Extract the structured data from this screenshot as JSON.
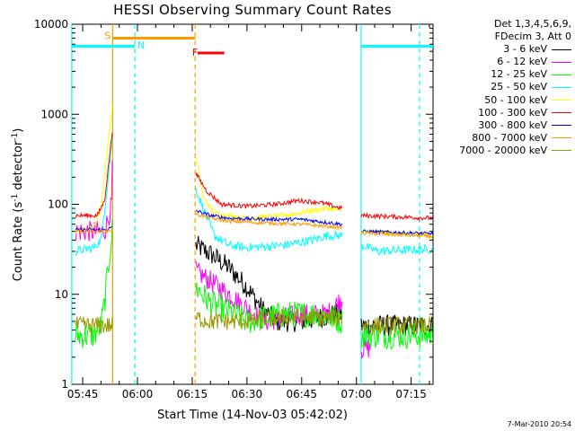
{
  "chart_data": {
    "type": "line",
    "title": "HESSI Observing Summary Count Rates",
    "xlabel": "Start Time (14-Nov-03 05:42:02)",
    "ylabel_main": "Count Rate (s",
    "ylabel_sup1": "-1",
    "ylabel_mid": " detector",
    "ylabel_sup2": "-1",
    "ylabel_end": ")",
    "x_unit": "minutes",
    "xlim": [
      342.03,
      441.0
    ],
    "ylim": [
      1,
      10000
    ],
    "y_scale": "log",
    "x_ticks": [
      {
        "t": 345,
        "label": "05:45"
      },
      {
        "t": 360,
        "label": "06:00"
      },
      {
        "t": 375,
        "label": "06:15"
      },
      {
        "t": 390,
        "label": "06:30"
      },
      {
        "t": 405,
        "label": "06:45"
      },
      {
        "t": 420,
        "label": "07:00"
      },
      {
        "t": 435,
        "label": "07:15"
      }
    ],
    "y_ticks": [
      {
        "v": 1,
        "label": "1"
      },
      {
        "v": 10,
        "label": "10"
      },
      {
        "v": 100,
        "label": "100"
      },
      {
        "v": 1000,
        "label": "1000"
      },
      {
        "v": 10000,
        "label": "10000"
      }
    ],
    "legend_header": [
      "Det 1,3,4,5,6,9,",
      "FDecim 3, Att 0"
    ],
    "gaps": [
      [
        353.2,
        375.8
      ],
      [
        416.2,
        421.3
      ]
    ],
    "series": [
      {
        "name": "3 - 6 keV",
        "color": "#000000",
        "noise": 0.12,
        "points": [
          [
            376,
            35
          ],
          [
            380,
            28
          ],
          [
            385,
            20
          ],
          [
            390,
            12
          ],
          [
            394,
            7
          ],
          [
            398,
            5
          ],
          [
            405,
            5
          ],
          [
            410,
            5.5
          ],
          [
            414,
            6
          ],
          [
            416,
            6
          ],
          [
            421.3,
            4.5
          ],
          [
            441,
            4.5
          ]
        ]
      },
      {
        "name": "6 - 12 keV",
        "color": "#ff00ff",
        "noise": 0.12,
        "points": [
          [
            343,
            50
          ],
          [
            351,
            50
          ],
          [
            353,
            100
          ],
          [
            353.2,
            600
          ],
          [
            376,
            18
          ],
          [
            380,
            14
          ],
          [
            385,
            10
          ],
          [
            390,
            7
          ],
          [
            395,
            5
          ],
          [
            405,
            6
          ],
          [
            412,
            6
          ],
          [
            416,
            9
          ],
          [
            421.3,
            2.5
          ],
          [
            424,
            2.5
          ]
        ]
      },
      {
        "name": "12 - 25 keV",
        "color": "#00ff00",
        "noise": 0.15,
        "points": [
          [
            343,
            3.5
          ],
          [
            348,
            3.5
          ],
          [
            350,
            4.5
          ],
          [
            351,
            8
          ],
          [
            352,
            20
          ],
          [
            353.2,
            55
          ],
          [
            376,
            12
          ],
          [
            380,
            8
          ],
          [
            385,
            6.5
          ],
          [
            390,
            5
          ],
          [
            400,
            6
          ],
          [
            410,
            6
          ],
          [
            416,
            5
          ],
          [
            421.3,
            3.5
          ],
          [
            441,
            3.5
          ]
        ]
      },
      {
        "name": "25 - 50 keV",
        "color": "#00ffff",
        "noise": 0.05,
        "points": [
          [
            343,
            30
          ],
          [
            348,
            33
          ],
          [
            350,
            40
          ],
          [
            352,
            200
          ],
          [
            353.2,
            600
          ],
          [
            376,
            150
          ],
          [
            378,
            90
          ],
          [
            381,
            45
          ],
          [
            385,
            35
          ],
          [
            390,
            33
          ],
          [
            400,
            35
          ],
          [
            408,
            40
          ],
          [
            412,
            45
          ],
          [
            416,
            45
          ],
          [
            421.3,
            35
          ],
          [
            426,
            30
          ],
          [
            441,
            32
          ]
        ]
      },
      {
        "name": "50 - 100 keV",
        "color": "#ffff00",
        "noise": 0.03,
        "points": [
          [
            343,
            50
          ],
          [
            348,
            55
          ],
          [
            350,
            90
          ],
          [
            352,
            500
          ],
          [
            353.2,
            1300
          ],
          [
            376,
            350
          ],
          [
            378,
            120
          ],
          [
            381,
            80
          ],
          [
            385,
            75
          ],
          [
            390,
            70
          ],
          [
            400,
            75
          ],
          [
            408,
            85
          ],
          [
            412,
            90
          ],
          [
            416,
            85
          ],
          [
            421.3,
            50
          ],
          [
            441,
            45
          ]
        ]
      },
      {
        "name": "100 - 300 keV",
        "color": "#ff0000",
        "noise": 0.025,
        "points": [
          [
            343,
            75
          ],
          [
            349,
            75
          ],
          [
            351,
            110
          ],
          [
            353.2,
            700
          ],
          [
            376,
            220
          ],
          [
            379,
            140
          ],
          [
            383,
            100
          ],
          [
            390,
            95
          ],
          [
            398,
            100
          ],
          [
            404,
            110
          ],
          [
            410,
            105
          ],
          [
            416,
            90
          ],
          [
            421.3,
            75
          ],
          [
            441,
            70
          ]
        ]
      },
      {
        "name": "300 - 800 keV",
        "color": "#0000ff",
        "noise": 0.02,
        "points": [
          [
            343,
            52
          ],
          [
            351,
            52
          ],
          [
            353.2,
            55
          ],
          [
            376,
            85
          ],
          [
            380,
            75
          ],
          [
            385,
            70
          ],
          [
            395,
            68
          ],
          [
            405,
            68
          ],
          [
            416,
            60
          ],
          [
            421.3,
            50
          ],
          [
            441,
            47
          ]
        ]
      },
      {
        "name": "800 - 7000 keV",
        "color": "#ff9900",
        "noise": 0.02,
        "points": [
          [
            343,
            50
          ],
          [
            351,
            50
          ],
          [
            353.2,
            52
          ],
          [
            376,
            78
          ],
          [
            380,
            70
          ],
          [
            385,
            65
          ],
          [
            395,
            62
          ],
          [
            405,
            60
          ],
          [
            416,
            55
          ],
          [
            421.3,
            48
          ],
          [
            441,
            44
          ]
        ]
      },
      {
        "name": "7000 - 20000 keV",
        "color": "#999900",
        "noise": 0.1,
        "points": [
          [
            343,
            4.5
          ],
          [
            353.2,
            4.5
          ],
          [
            376,
            5.5
          ],
          [
            380,
            5
          ],
          [
            390,
            5
          ],
          [
            400,
            5.5
          ],
          [
            410,
            5.5
          ],
          [
            416,
            5.5
          ],
          [
            421.3,
            4.5
          ],
          [
            441,
            4.5
          ]
        ]
      }
    ],
    "vlines": [
      {
        "t": 342.0,
        "color": "#00ffff",
        "style": "solid"
      },
      {
        "t": 353.2,
        "color": "#ff9900",
        "style": "solid"
      },
      {
        "t": 359.3,
        "color": "#00ffff",
        "style": "dashed"
      },
      {
        "t": 375.8,
        "color": "#ff9900",
        "style": "dashed"
      },
      {
        "t": 421.3,
        "color": "#00ffff",
        "style": "solid"
      },
      {
        "t": 437.3,
        "color": "#00ffff",
        "style": "dashed"
      }
    ],
    "bars": [
      {
        "label": "",
        "color": "#00ffff",
        "y": 5700,
        "t_start": 342.03,
        "t_end": 359.3
      },
      {
        "label": "S",
        "color": "#ff9900",
        "y": 7000,
        "t_start": 353.2,
        "t_end": 375.8
      },
      {
        "label": "F",
        "color": "#ff0000",
        "y": 4800,
        "t_start": 376.5,
        "t_end": 383.8
      },
      {
        "label": "",
        "color": "#00ffff",
        "y": 5700,
        "t_start": 421.3,
        "t_end": 441.0
      }
    ],
    "flag_labels": [
      {
        "text": "S",
        "color": "#ff9900",
        "t": 351.0,
        "y": 7200
      },
      {
        "text": "N",
        "color": "#00ffff",
        "t": 360.0,
        "y": 5600
      },
      {
        "text": "F",
        "color": "#ff0000",
        "t": 375.0,
        "y": 4700
      }
    ]
  },
  "timestamp": "7-Mar-2010 20:54"
}
